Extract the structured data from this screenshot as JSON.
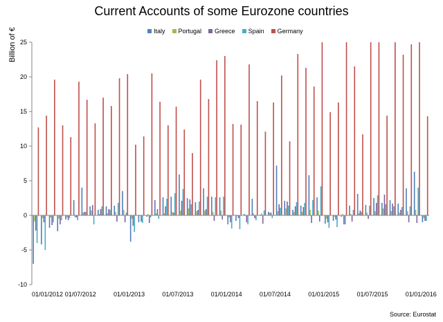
{
  "chart_data": {
    "type": "bar",
    "title": "Current Accounts of some Eurozone countries",
    "ylabel": "Billion of €",
    "xlabel": "",
    "ylim": [
      -10,
      25
    ],
    "grid": false,
    "legend": "top",
    "y_ticks": [
      "-10",
      "-5",
      "0",
      "5",
      "10",
      "15",
      "20",
      "25"
    ],
    "x_ticks": [
      "01/01/2012",
      "01/07/2012",
      "01/01/2013",
      "01/07/2013",
      "01/01/2014",
      "01/07/2014",
      "01/01/2015",
      "01/07/2015",
      "01/01/2016"
    ],
    "categories": [
      "2012-01",
      "2012-02",
      "2012-03",
      "2012-04",
      "2012-05",
      "2012-06",
      "2012-07",
      "2012-08",
      "2012-09",
      "2012-10",
      "2012-11",
      "2012-12",
      "2013-01",
      "2013-02",
      "2013-03",
      "2013-04",
      "2013-05",
      "2013-06",
      "2013-07",
      "2013-08",
      "2013-09",
      "2013-10",
      "2013-11",
      "2013-12",
      "2014-01",
      "2014-02",
      "2014-03",
      "2014-04",
      "2014-05",
      "2014-06",
      "2014-07",
      "2014-08",
      "2014-09",
      "2014-10",
      "2014-11",
      "2014-12",
      "2015-01",
      "2015-02",
      "2015-03",
      "2015-04",
      "2015-05",
      "2015-06",
      "2015-07",
      "2015-08",
      "2015-09",
      "2015-10",
      "2015-11",
      "2015-12",
      "2016-01"
    ],
    "series": [
      {
        "name": "Italy",
        "color": "#4f81bd",
        "values": [
          -7.0,
          -4.2,
          -1.8,
          -2.3,
          -0.6,
          2.2,
          4.0,
          1.3,
          0.8,
          1.3,
          1.4,
          3.5,
          -3.8,
          -1.0,
          -0.2,
          2.2,
          2.6,
          2.7,
          5.9,
          2.5,
          1.9,
          3.9,
          2.7,
          2.6,
          -1.3,
          -0.8,
          0.2,
          2.4,
          0.1,
          0.5,
          7.2,
          2.1,
          0.8,
          1.4,
          5.8,
          2.6,
          -1.2,
          -0.8,
          -0.2,
          1.4,
          3.1,
          1.5,
          2.5,
          1.8,
          2.2,
          1.7,
          3.9,
          6.3,
          -1.0
        ]
      },
      {
        "name": "Portugal",
        "color": "#9bbb59",
        "values": [
          -0.9,
          -0.4,
          -0.3,
          -0.5,
          -0.3,
          -0.3,
          0.4,
          0.7,
          0.2,
          0.3,
          0.5,
          0.8,
          -0.5,
          -0.1,
          0.2,
          0.3,
          0.3,
          0.5,
          0.7,
          1.0,
          0.6,
          0.7,
          0.5,
          0.7,
          -0.3,
          -0.1,
          0.1,
          0.3,
          0.3,
          0.4,
          0.6,
          1.0,
          0.5,
          0.5,
          0.8,
          0.7,
          -0.5,
          -0.2,
          0.2,
          0.2,
          0.3,
          0.4,
          0.6,
          1.0,
          0.6,
          0.4,
          0.6,
          0.8,
          -0.4
        ]
      },
      {
        "name": "Greece",
        "color": "#8064a2",
        "values": [
          -2.2,
          -1.0,
          -1.4,
          -1.3,
          -0.7,
          -0.3,
          0.5,
          1.5,
          0.9,
          0.9,
          -0.9,
          -1.0,
          -1.5,
          -0.9,
          -1.1,
          0.9,
          1.3,
          0.4,
          2.1,
          2.3,
          0.8,
          0.9,
          -0.8,
          -0.6,
          -1.0,
          -0.4,
          -1.0,
          -0.4,
          -1.2,
          0.4,
          1.6,
          2.0,
          1.3,
          1.2,
          -1.1,
          -0.9,
          -1.0,
          -0.6,
          -1.3,
          -0.9,
          0.7,
          -0.5,
          1.8,
          3.0,
          1.7,
          0.8,
          -1.0,
          -1.1,
          -0.8
        ]
      },
      {
        "name": "Spain",
        "color": "#4bacc6",
        "values": [
          -4.0,
          -5.0,
          -1.0,
          -0.7,
          -0.4,
          -0.7,
          0.5,
          -1.3,
          1.3,
          0.8,
          1.8,
          0.4,
          -2.4,
          -1.1,
          -0.3,
          -0.5,
          2.4,
          3.2,
          3.8,
          1.6,
          2.0,
          2.7,
          2.6,
          2.7,
          -1.9,
          -2.0,
          -1.3,
          -0.7,
          0.7,
          -0.4,
          1.1,
          1.4,
          1.9,
          1.8,
          2.2,
          4.2,
          -1.8,
          -1.7,
          -1.3,
          0.8,
          0.5,
          1.4,
          2.9,
          1.6,
          1.3,
          1.2,
          1.3,
          4.0,
          -0.8
        ]
      },
      {
        "name": "Germany",
        "color": "#c0504d",
        "values": [
          12.7,
          14.4,
          19.6,
          13.0,
          11.3,
          19.3,
          16.7,
          13.3,
          17.0,
          15.8,
          19.8,
          20.4,
          10.2,
          11.4,
          20.5,
          16.4,
          13.0,
          15.7,
          12.4,
          9.0,
          19.6,
          16.8,
          22.4,
          23.0,
          13.2,
          13.1,
          21.8,
          16.5,
          12.1,
          16.3,
          20.2,
          10.7,
          23.3,
          21.3,
          18.6,
          25.0,
          14.9,
          16.3,
          25.0,
          21.5,
          11.7,
          25.0,
          25.0,
          14.4,
          25.0,
          23.2,
          24.7,
          25.0,
          14.3
        ]
      }
    ],
    "source": "Source:  Eurostat"
  }
}
